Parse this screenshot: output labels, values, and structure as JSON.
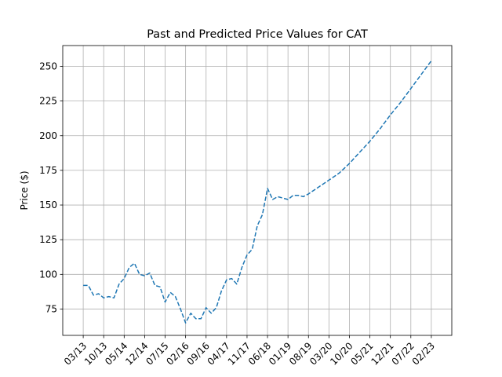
{
  "chart_data": {
    "type": "line",
    "title": "Past and Predicted Price Values for CAT",
    "xlabel": "",
    "ylabel": "Price ($)",
    "ylim": [
      56,
      265
    ],
    "yticks": [
      75,
      100,
      125,
      150,
      175,
      200,
      225,
      250
    ],
    "xticks": [
      "03/13",
      "10/13",
      "05/14",
      "12/14",
      "07/15",
      "02/16",
      "09/16",
      "04/17",
      "11/17",
      "06/18",
      "01/19",
      "08/19",
      "03/20",
      "10/20",
      "05/21",
      "12/21",
      "07/22",
      "02/23"
    ],
    "x": [
      0.0,
      0.25,
      0.5,
      0.75,
      1.0,
      1.25,
      1.5,
      1.75,
      2.0,
      2.25,
      2.5,
      2.75,
      3.0,
      3.25,
      3.5,
      3.75,
      4.0,
      4.25,
      4.5,
      4.75,
      5.0,
      5.25,
      5.5,
      5.75,
      6.0,
      6.25,
      6.5,
      6.75,
      7.0,
      7.25,
      7.5,
      7.75,
      8.0,
      8.25,
      8.5,
      8.75,
      9.0,
      9.25,
      9.5,
      9.75,
      10.0,
      10.25,
      10.5,
      10.75,
      11.0,
      11.5,
      12.0,
      12.5,
      13.0,
      13.5,
      14.0,
      14.5,
      15.0,
      15.5,
      16.0,
      16.5,
      17.0
    ],
    "series": [
      {
        "name": "",
        "color": "#1f77b4",
        "style": "dashed",
        "values": [
          92,
          92,
          85,
          86,
          83,
          84,
          83,
          93,
          97,
          105,
          108,
          100,
          99,
          101,
          92,
          91,
          80,
          87,
          84,
          75,
          65,
          72,
          68,
          68,
          76,
          72,
          76,
          88,
          96,
          97,
          93,
          105,
          114,
          118,
          135,
          143,
          162,
          154,
          156,
          155,
          154,
          157,
          157,
          156,
          158,
          163,
          168,
          173,
          180,
          188,
          196,
          205,
          215,
          224,
          234,
          244,
          254
        ]
      }
    ],
    "grid": true,
    "legend": "none"
  }
}
